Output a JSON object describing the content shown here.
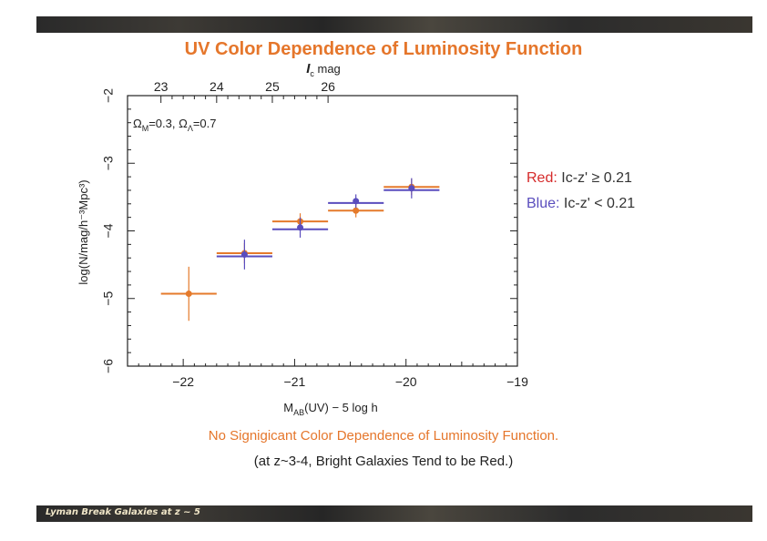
{
  "title": "UV Color Dependence of Luminosity Function",
  "footer_text": "Lyman Break Galaxies at z ~ 5",
  "legend": {
    "red_label": "Red:",
    "red_text": "Ic-z' ≥ 0.21",
    "blue_label": "Blue:",
    "blue_text": "Ic-z' < 0.21"
  },
  "conclusion_1": "No Signigicant Color Dependence of Luminosity Function.",
  "conclusion_2": "(at z~3-4, Bright Galaxies Tend to be Red.)",
  "colors": {
    "title": "#e5762b",
    "red": "#d52a2a",
    "blue": "#5a4dbd",
    "orange": "#e57a2b"
  },
  "chart_data": {
    "type": "scatter",
    "title": "UV Color Dependence of Luminosity Function",
    "xlabel_main": "M",
    "xlabel_sub": "AB",
    "xlabel_rest": "(UV) − 5 log h",
    "ylabel": "log(N/mag/h⁻³Mpc³)",
    "top_xlabel_main": "I",
    "top_xlabel_sub": "c",
    "top_xlabel_rest": " mag",
    "annotation": "Ω_M=0.3, Ω_Λ=0.7",
    "annotation_text": {
      "om": "Ω",
      "om_sub": "M",
      "om_val": "=0.3, ",
      "ol": "Ω",
      "ol_sub": "Λ",
      "ol_val": "=0.7"
    },
    "xlim": [
      -22.5,
      -19
    ],
    "ylim": [
      -6,
      -2
    ],
    "xticks": [
      -22,
      -21,
      -20,
      -19
    ],
    "xticklabels": [
      "−22",
      "−21",
      "−20",
      "−19"
    ],
    "yticks": [
      -6,
      -5,
      -4,
      -3,
      -2
    ],
    "yticklabels": [
      "−6",
      "−5",
      "−4",
      "−3",
      "−2"
    ],
    "top_ticks": [
      {
        "at": -22.2,
        "label": "23"
      },
      {
        "at": -21.7,
        "label": "24"
      },
      {
        "at": -21.2,
        "label": "25"
      },
      {
        "at": -20.7,
        "label": "26"
      }
    ],
    "series": [
      {
        "color": "#e57a2b",
        "points": [
          {
            "x": -21.95,
            "y": -4.93,
            "xerr": 0.25,
            "yerr": 0.4
          },
          {
            "x": -21.45,
            "y": -4.33,
            "xerr": 0.25,
            "yerr": 0.15
          },
          {
            "x": -20.95,
            "y": -3.86,
            "xerr": 0.25,
            "yerr": 0.12
          },
          {
            "x": -20.45,
            "y": -3.7,
            "xerr": 0.25,
            "yerr": 0.1
          },
          {
            "x": -19.95,
            "y": -3.35,
            "xerr": 0.25,
            "yerr": 0.12
          }
        ]
      },
      {
        "color": "#5a4dbd",
        "points": [
          {
            "x": -21.45,
            "y": -4.35,
            "xerr": 0.25,
            "yerr": 0.22
          },
          {
            "x": -20.95,
            "y": -3.95,
            "xerr": 0.25,
            "yerr": 0.15
          },
          {
            "x": -20.45,
            "y": -3.56,
            "xerr": 0.25,
            "yerr": 0.1
          },
          {
            "x": -19.95,
            "y": -3.37,
            "xerr": 0.25,
            "yerr": 0.15
          }
        ]
      }
    ]
  }
}
